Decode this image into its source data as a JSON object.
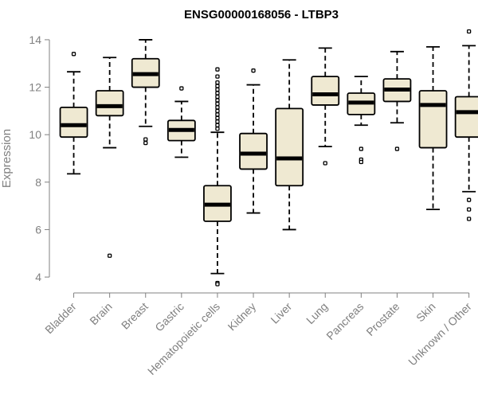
{
  "chart_data": {
    "type": "boxplot",
    "title": "ENSG00000168056 - LTBP3",
    "xlabel": "",
    "ylabel": "Expression",
    "ylim": [
      3.6,
      14.4
    ],
    "yticks": [
      4,
      6,
      8,
      10,
      12,
      14
    ],
    "box_fill": "#efe9d2",
    "axis_color": "#808080",
    "categories": [
      "Bladder",
      "Brain",
      "Breast",
      "Gastric",
      "Hematopoietic cells",
      "Kidney",
      "Liver",
      "Lung",
      "Pancreas",
      "Prostate",
      "Skin",
      "Unknown / Other"
    ],
    "boxes": [
      {
        "category": "Bladder",
        "whisker_low": 8.35,
        "q1": 9.9,
        "median": 10.4,
        "q3": 11.15,
        "whisker_high": 12.65,
        "outliers": [
          13.4
        ]
      },
      {
        "category": "Brain",
        "whisker_low": 9.45,
        "q1": 10.8,
        "median": 11.2,
        "q3": 11.85,
        "whisker_high": 13.25,
        "outliers": [
          4.9
        ]
      },
      {
        "category": "Breast",
        "whisker_low": 10.35,
        "q1": 12.0,
        "median": 12.55,
        "q3": 13.2,
        "whisker_high": 14.0,
        "outliers": [
          9.8,
          9.65
        ]
      },
      {
        "category": "Gastric",
        "whisker_low": 9.05,
        "q1": 9.75,
        "median": 10.2,
        "q3": 10.6,
        "whisker_high": 11.4,
        "outliers": [
          11.95
        ]
      },
      {
        "category": "Hematopoietic cells",
        "whisker_low": 4.15,
        "q1": 6.35,
        "median": 7.05,
        "q3": 7.85,
        "whisker_high": 10.1,
        "outliers": [
          3.75,
          3.7,
          10.25,
          10.4,
          10.55,
          10.7,
          10.85,
          11.0,
          11.15,
          11.3,
          11.45,
          11.6,
          11.75,
          11.9,
          12.05,
          12.2,
          12.45,
          12.75
        ]
      },
      {
        "category": "Kidney",
        "whisker_low": 6.7,
        "q1": 8.55,
        "median": 9.2,
        "q3": 10.05,
        "whisker_high": 12.1,
        "outliers": [
          12.7
        ]
      },
      {
        "category": "Liver",
        "whisker_low": 6.0,
        "q1": 7.85,
        "median": 9.0,
        "q3": 11.1,
        "whisker_high": 13.15,
        "outliers": []
      },
      {
        "category": "Lung",
        "whisker_low": 9.5,
        "q1": 11.25,
        "median": 11.7,
        "q3": 12.45,
        "whisker_high": 13.65,
        "outliers": [
          8.8
        ]
      },
      {
        "category": "Pancreas",
        "whisker_low": 10.4,
        "q1": 10.85,
        "median": 11.35,
        "q3": 11.75,
        "whisker_high": 12.45,
        "outliers": [
          9.4,
          8.95,
          8.85
        ]
      },
      {
        "category": "Prostate",
        "whisker_low": 10.5,
        "q1": 11.4,
        "median": 11.9,
        "q3": 12.35,
        "whisker_high": 13.5,
        "outliers": [
          9.4
        ]
      },
      {
        "category": "Skin",
        "whisker_low": 6.85,
        "q1": 9.45,
        "median": 11.25,
        "q3": 11.85,
        "whisker_high": 13.7,
        "outliers": []
      },
      {
        "category": "Unknown / Other",
        "whisker_low": 7.6,
        "q1": 9.9,
        "median": 10.95,
        "q3": 11.6,
        "whisker_high": 13.75,
        "outliers": [
          14.35,
          7.25,
          6.85,
          6.45
        ]
      }
    ]
  }
}
